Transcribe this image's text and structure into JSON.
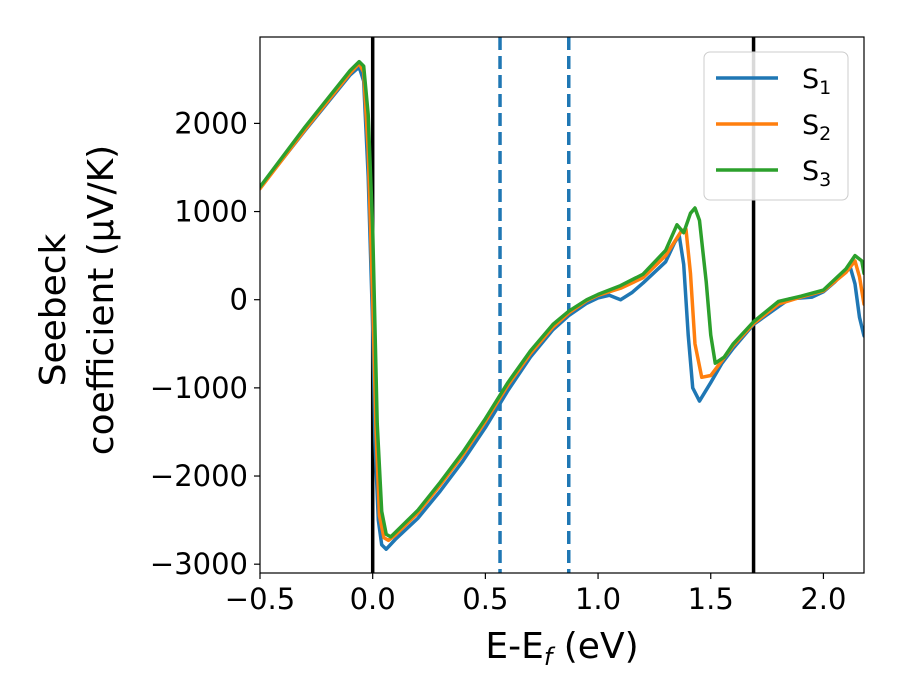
{
  "chart_data": {
    "type": "line",
    "xlabel": "E-E",
    "xlabel_sub": "f",
    "xlabel_unit": " (eV)",
    "ylabel_line1": "Seebeck",
    "ylabel_line2": "coefficient  (μV/K)",
    "xlim": [
      -0.5,
      2.18
    ],
    "ylim": [
      -3100,
      2980
    ],
    "x_ticks": [
      -0.5,
      0.0,
      0.5,
      1.0,
      1.5,
      2.0
    ],
    "x_tick_labels": [
      "−0.5",
      "0.0",
      "0.5",
      "1.0",
      "1.5",
      "2.0"
    ],
    "y_ticks": [
      -3000,
      -2000,
      -1000,
      0,
      1000,
      2000
    ],
    "y_tick_labels": [
      "−3000",
      "−2000",
      "−1000",
      "0",
      "1000",
      "2000"
    ],
    "grid": false,
    "legend_position": "top-right",
    "vertical_lines": [
      {
        "x": 0.0,
        "style": "solid",
        "color": "#000000"
      },
      {
        "x": 0.565,
        "style": "dashed",
        "color": "#1f77b4"
      },
      {
        "x": 0.87,
        "style": "dashed",
        "color": "#1f77b4"
      },
      {
        "x": 1.69,
        "style": "solid",
        "color": "#000000"
      }
    ],
    "series": [
      {
        "name": "S",
        "subscript": "1",
        "color": "#1f77b4",
        "points": [
          [
            -0.5,
            1270
          ],
          [
            -0.3,
            1920
          ],
          [
            -0.1,
            2550
          ],
          [
            -0.06,
            2640
          ],
          [
            -0.04,
            2480
          ],
          [
            -0.02,
            1400
          ],
          [
            0.0,
            -300
          ],
          [
            0.01,
            -1600
          ],
          [
            0.025,
            -2500
          ],
          [
            0.04,
            -2780
          ],
          [
            0.06,
            -2830
          ],
          [
            0.1,
            -2720
          ],
          [
            0.2,
            -2480
          ],
          [
            0.3,
            -2170
          ],
          [
            0.4,
            -1830
          ],
          [
            0.5,
            -1450
          ],
          [
            0.6,
            -1030
          ],
          [
            0.7,
            -650
          ],
          [
            0.8,
            -340
          ],
          [
            0.87,
            -180
          ],
          [
            0.95,
            -40
          ],
          [
            1.0,
            20
          ],
          [
            1.05,
            50
          ],
          [
            1.08,
            20
          ],
          [
            1.1,
            0
          ],
          [
            1.15,
            80
          ],
          [
            1.2,
            190
          ],
          [
            1.3,
            430
          ],
          [
            1.34,
            650
          ],
          [
            1.36,
            730
          ],
          [
            1.38,
            400
          ],
          [
            1.4,
            -400
          ],
          [
            1.42,
            -1000
          ],
          [
            1.45,
            -1150
          ],
          [
            1.5,
            -940
          ],
          [
            1.55,
            -720
          ],
          [
            1.6,
            -550
          ],
          [
            1.69,
            -280
          ],
          [
            1.8,
            -80
          ],
          [
            1.85,
            10
          ],
          [
            1.95,
            30
          ],
          [
            2.0,
            90
          ],
          [
            2.05,
            200
          ],
          [
            2.1,
            340
          ],
          [
            2.12,
            360
          ],
          [
            2.14,
            180
          ],
          [
            2.16,
            -200
          ],
          [
            2.18,
            -410
          ]
        ]
      },
      {
        "name": "S",
        "subscript": "2",
        "color": "#ff7f0e",
        "points": [
          [
            -0.5,
            1260
          ],
          [
            -0.3,
            1930
          ],
          [
            -0.1,
            2570
          ],
          [
            -0.06,
            2680
          ],
          [
            -0.04,
            2580
          ],
          [
            -0.02,
            1700
          ],
          [
            0.0,
            0
          ],
          [
            0.015,
            -1500
          ],
          [
            0.03,
            -2450
          ],
          [
            0.05,
            -2700
          ],
          [
            0.07,
            -2730
          ],
          [
            0.1,
            -2670
          ],
          [
            0.2,
            -2420
          ],
          [
            0.3,
            -2100
          ],
          [
            0.4,
            -1760
          ],
          [
            0.5,
            -1380
          ],
          [
            0.6,
            -970
          ],
          [
            0.7,
            -610
          ],
          [
            0.8,
            -310
          ],
          [
            0.87,
            -150
          ],
          [
            0.95,
            -10
          ],
          [
            1.0,
            50
          ],
          [
            1.1,
            130
          ],
          [
            1.2,
            250
          ],
          [
            1.3,
            500
          ],
          [
            1.37,
            780
          ],
          [
            1.39,
            800
          ],
          [
            1.41,
            300
          ],
          [
            1.43,
            -500
          ],
          [
            1.46,
            -880
          ],
          [
            1.5,
            -860
          ],
          [
            1.55,
            -690
          ],
          [
            1.6,
            -520
          ],
          [
            1.69,
            -270
          ],
          [
            1.8,
            -50
          ],
          [
            1.9,
            30
          ],
          [
            2.0,
            100
          ],
          [
            2.1,
            310
          ],
          [
            2.14,
            440
          ],
          [
            2.16,
            260
          ],
          [
            2.18,
            -50
          ]
        ]
      },
      {
        "name": "S",
        "subscript": "3",
        "color": "#2ca02c",
        "points": [
          [
            -0.5,
            1280
          ],
          [
            -0.3,
            1960
          ],
          [
            -0.1,
            2600
          ],
          [
            -0.06,
            2700
          ],
          [
            -0.04,
            2650
          ],
          [
            -0.02,
            2100
          ],
          [
            0.0,
            800
          ],
          [
            0.02,
            -1400
          ],
          [
            0.04,
            -2400
          ],
          [
            0.06,
            -2660
          ],
          [
            0.08,
            -2690
          ],
          [
            0.1,
            -2640
          ],
          [
            0.2,
            -2390
          ],
          [
            0.3,
            -2070
          ],
          [
            0.4,
            -1730
          ],
          [
            0.5,
            -1350
          ],
          [
            0.6,
            -940
          ],
          [
            0.7,
            -580
          ],
          [
            0.8,
            -280
          ],
          [
            0.87,
            -130
          ],
          [
            0.95,
            0
          ],
          [
            1.0,
            60
          ],
          [
            1.1,
            160
          ],
          [
            1.2,
            290
          ],
          [
            1.3,
            560
          ],
          [
            1.35,
            850
          ],
          [
            1.38,
            760
          ],
          [
            1.41,
            980
          ],
          [
            1.43,
            1040
          ],
          [
            1.45,
            900
          ],
          [
            1.48,
            200
          ],
          [
            1.5,
            -400
          ],
          [
            1.52,
            -720
          ],
          [
            1.56,
            -650
          ],
          [
            1.6,
            -500
          ],
          [
            1.69,
            -250
          ],
          [
            1.8,
            -20
          ],
          [
            1.9,
            40
          ],
          [
            2.0,
            110
          ],
          [
            2.1,
            350
          ],
          [
            2.14,
            500
          ],
          [
            2.17,
            440
          ],
          [
            2.18,
            300
          ]
        ]
      }
    ]
  }
}
